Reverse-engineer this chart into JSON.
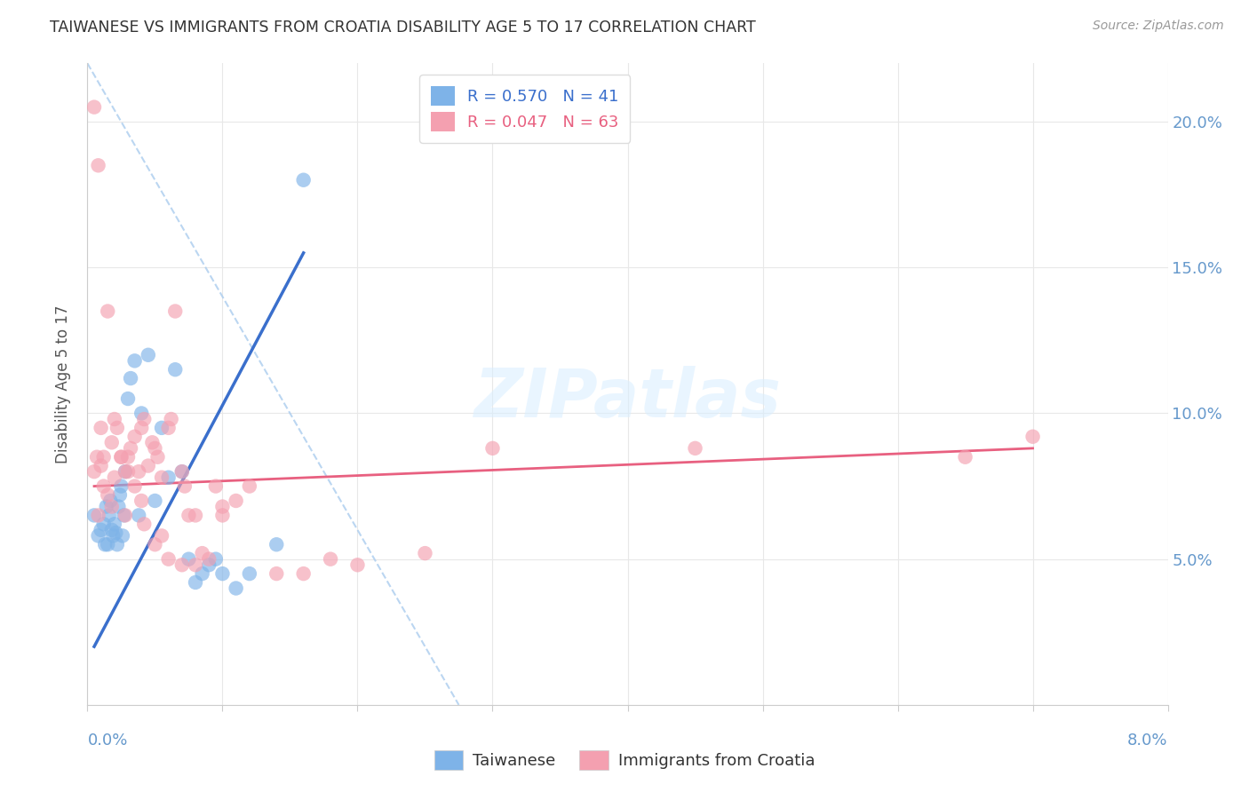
{
  "title": "TAIWANESE VS IMMIGRANTS FROM CROATIA DISABILITY AGE 5 TO 17 CORRELATION CHART",
  "source": "Source: ZipAtlas.com",
  "ylabel": "Disability Age 5 to 17",
  "xlim": [
    0.0,
    8.0
  ],
  "ylim": [
    0.0,
    22.0
  ],
  "yticks_right": [
    5.0,
    10.0,
    15.0,
    20.0
  ],
  "ytick_labels_right": [
    "5.0%",
    "10.0%",
    "15.0%",
    "20.0%"
  ],
  "legend_entry1": "R = 0.570   N = 41",
  "legend_entry2": "R = 0.047   N = 63",
  "legend_label1": "Taiwanese",
  "legend_label2": "Immigrants from Croatia",
  "blue_color": "#7EB3E8",
  "pink_color": "#F4A0B0",
  "blue_line_color": "#3A6FCC",
  "pink_line_color": "#E86080",
  "title_color": "#333333",
  "axis_label_color": "#6699CC",
  "background_color": "#FFFFFF",
  "grid_color": "#E8E8E8",
  "taiwanese_x": [
    0.05,
    0.08,
    0.1,
    0.12,
    0.13,
    0.14,
    0.15,
    0.16,
    0.17,
    0.18,
    0.19,
    0.2,
    0.21,
    0.22,
    0.23,
    0.24,
    0.25,
    0.26,
    0.27,
    0.28,
    0.3,
    0.32,
    0.35,
    0.38,
    0.4,
    0.45,
    0.5,
    0.55,
    0.6,
    0.65,
    0.7,
    0.75,
    0.8,
    0.85,
    0.9,
    0.95,
    1.0,
    1.1,
    1.2,
    1.4,
    1.6
  ],
  "taiwanese_y": [
    6.5,
    5.8,
    6.0,
    6.2,
    5.5,
    6.8,
    5.5,
    6.5,
    7.0,
    6.0,
    5.8,
    6.2,
    5.9,
    5.5,
    6.8,
    7.2,
    7.5,
    5.8,
    6.5,
    8.0,
    10.5,
    11.2,
    11.8,
    6.5,
    10.0,
    12.0,
    7.0,
    9.5,
    7.8,
    11.5,
    8.0,
    5.0,
    4.2,
    4.5,
    4.8,
    5.0,
    4.5,
    4.0,
    4.5,
    5.5,
    18.0
  ],
  "croatian_x": [
    0.05,
    0.08,
    0.1,
    0.12,
    0.15,
    0.18,
    0.2,
    0.22,
    0.25,
    0.28,
    0.3,
    0.32,
    0.35,
    0.38,
    0.4,
    0.42,
    0.45,
    0.48,
    0.5,
    0.52,
    0.55,
    0.6,
    0.62,
    0.65,
    0.7,
    0.72,
    0.75,
    0.8,
    0.85,
    0.9,
    0.95,
    1.0,
    1.1,
    1.2,
    1.4,
    1.6,
    1.8,
    2.0,
    2.5,
    3.0,
    0.05,
    0.07,
    0.1,
    0.12,
    0.15,
    0.2,
    0.25,
    0.3,
    0.35,
    0.4,
    0.5,
    0.6,
    0.7,
    0.8,
    1.0,
    4.5,
    6.5,
    7.0,
    0.08,
    0.18,
    0.28,
    0.42,
    0.55
  ],
  "croatian_y": [
    20.5,
    18.5,
    9.5,
    8.5,
    13.5,
    9.0,
    9.8,
    9.5,
    8.5,
    8.0,
    8.5,
    8.8,
    9.2,
    8.0,
    9.5,
    9.8,
    8.2,
    9.0,
    8.8,
    8.5,
    7.8,
    9.5,
    9.8,
    13.5,
    8.0,
    7.5,
    6.5,
    4.8,
    5.2,
    5.0,
    7.5,
    6.5,
    7.0,
    7.5,
    4.5,
    4.5,
    5.0,
    4.8,
    5.2,
    8.8,
    8.0,
    8.5,
    8.2,
    7.5,
    7.2,
    7.8,
    8.5,
    8.0,
    7.5,
    7.0,
    5.5,
    5.0,
    4.8,
    6.5,
    6.8,
    8.8,
    8.5,
    9.2,
    6.5,
    6.8,
    6.5,
    6.2,
    5.8
  ],
  "blue_reg_x0": 0.05,
  "blue_reg_x1": 1.6,
  "blue_reg_y0": 2.0,
  "blue_reg_y1": 15.5,
  "pink_reg_x0": 0.05,
  "pink_reg_x1": 7.0,
  "pink_reg_y0": 7.5,
  "pink_reg_y1": 8.8,
  "diag_x0": 0.0,
  "diag_y0": 22.0,
  "diag_x1": 2.75,
  "diag_y1": 0.0
}
